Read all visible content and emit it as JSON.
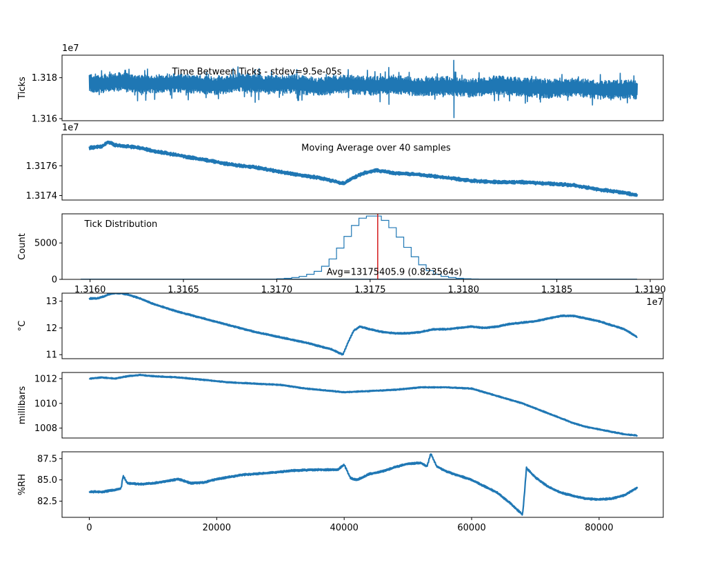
{
  "chart_data": [
    {
      "id": "ticks",
      "type": "line",
      "xlim": [
        -4270,
        90070
      ],
      "ylim": [
        13159000,
        13191000
      ],
      "ylabel": "Ticks",
      "offset_text": "1e7",
      "yticks": [
        {
          "v": 13160000,
          "label": "1.316"
        },
        {
          "v": 13180000,
          "label": "1.318"
        }
      ],
      "xticks": [],
      "annotations": [
        {
          "text": "Time Between Ticks - stdev=9.5e-05s",
          "x": 13000,
          "y": 13183000,
          "anchor": "start"
        }
      ],
      "color": "#1f77b4",
      "x": [
        0,
        2000,
        5000,
        8000,
        12000,
        16000,
        20000,
        24000,
        28000,
        32000,
        36000,
        40000,
        44000,
        48000,
        52000,
        56000,
        60000,
        64000,
        68000,
        72000,
        76000,
        80000,
        84000,
        86000
      ],
      "y": [
        13177500,
        13177000,
        13178000,
        13176500,
        13177500,
        13177000,
        13176000,
        13178000,
        13176500,
        13177000,
        13175500,
        13177000,
        13176000,
        13176500,
        13175500,
        13176000,
        13175000,
        13176500,
        13175500,
        13174500,
        13175500,
        13174000,
        13174500,
        13174000
      ],
      "envelope": {
        "low": 13171500,
        "high": 13182500,
        "spikes": [
          {
            "x": 47000,
            "low": 13167000,
            "high": 13185000
          },
          {
            "x": 57200,
            "low": 13160500,
            "high": 13188500
          },
          {
            "x": 26000,
            "low": 13168000,
            "high": 13184000
          }
        ]
      }
    },
    {
      "id": "moving-average",
      "type": "line",
      "xlim": [
        -4270,
        90070
      ],
      "ylim": [
        13173700,
        13178100
      ],
      "ylabel": "",
      "offset_text": "1e7",
      "yticks": [
        {
          "v": 13174000,
          "label": "1.3174"
        },
        {
          "v": 13176000,
          "label": "1.3176"
        }
      ],
      "xticks": [],
      "annotations": [
        {
          "text": "Moving Average over 40 samples",
          "x": 45000,
          "y": 13177200,
          "anchor": "middle"
        }
      ],
      "color": "#1f77b4",
      "x": [
        0,
        2000,
        3000,
        4000,
        6000,
        8000,
        10000,
        14000,
        18000,
        22000,
        26000,
        30000,
        34000,
        36000,
        38000,
        40000,
        41000,
        43000,
        45000,
        48000,
        52000,
        56000,
        60000,
        64000,
        68000,
        72000,
        76000,
        80000,
        84000,
        86000
      ],
      "y": [
        13177200,
        13177300,
        13177600,
        13177400,
        13177300,
        13177200,
        13177000,
        13176700,
        13176400,
        13176100,
        13175900,
        13175600,
        13175300,
        13175200,
        13175000,
        13174800,
        13175100,
        13175500,
        13175700,
        13175500,
        13175400,
        13175200,
        13175000,
        13174900,
        13174900,
        13174800,
        13174700,
        13174400,
        13174200,
        13174000
      ],
      "band": 120
    },
    {
      "id": "tick-distribution",
      "type": "histogram",
      "xlim": [
        13158500,
        13190700
      ],
      "ylim": [
        0,
        9000
      ],
      "ylabel": "Count",
      "offset_text": "1e7",
      "yticks": [
        {
          "v": 0,
          "label": "0"
        },
        {
          "v": 5000,
          "label": "5000"
        }
      ],
      "xticks": [
        {
          "v": 13160000,
          "label": "1.3160"
        },
        {
          "v": 13165000,
          "label": "1.3165"
        },
        {
          "v": 13170000,
          "label": "1.3170"
        },
        {
          "v": 13175000,
          "label": "1.3175"
        },
        {
          "v": 13180000,
          "label": "1.3180"
        },
        {
          "v": 13185000,
          "label": "1.3185"
        },
        {
          "v": 13190000,
          "label": "1.3190"
        }
      ],
      "annotations": [
        {
          "text": "Tick Distribution",
          "x": 13159700,
          "y": 7600,
          "anchor": "start"
        },
        {
          "text": "Avg=13175405.9 (0.823564s)",
          "x": 13176300,
          "y": 1000,
          "anchor": "middle"
        }
      ],
      "color": "#1f77b4",
      "mean": 13175405.9,
      "mean_color": "#d62728",
      "bin_edges": [
        13168800,
        13169200,
        13169600,
        13170000,
        13170400,
        13170800,
        13171200,
        13171600,
        13172000,
        13172400,
        13172800,
        13173200,
        13173600,
        13174000,
        13174400,
        13174800,
        13175200,
        13175600,
        13176000,
        13176400,
        13176800,
        13177200,
        13177600,
        13178000,
        13178400,
        13178800,
        13179200,
        13179600,
        13180000,
        13180400,
        13180800,
        13181200,
        13181600
      ],
      "counts": [
        10,
        20,
        40,
        80,
        150,
        250,
        400,
        700,
        1100,
        1800,
        2800,
        4300,
        5900,
        7400,
        8400,
        8700,
        8700,
        8100,
        7100,
        5800,
        4400,
        3100,
        2000,
        1200,
        700,
        400,
        250,
        150,
        90,
        50,
        20,
        10
      ]
    },
    {
      "id": "temperature",
      "type": "line",
      "xlim": [
        -4270,
        90070
      ],
      "ylim": [
        10.85,
        13.3
      ],
      "ylabel": "°C",
      "offset_text": "",
      "yticks": [
        {
          "v": 11,
          "label": "11"
        },
        {
          "v": 12,
          "label": "12"
        },
        {
          "v": 13,
          "label": "13"
        }
      ],
      "xticks": [],
      "annotations": [],
      "color": "#1f77b4",
      "x": [
        0,
        1200,
        2000,
        3000,
        4000,
        5000,
        6000,
        8000,
        10000,
        14000,
        18000,
        22000,
        26000,
        30000,
        34000,
        38000,
        39800,
        40500,
        41500,
        42500,
        44000,
        46000,
        48000,
        50000,
        52000,
        54000,
        56000,
        58000,
        60000,
        62000,
        64000,
        66000,
        68000,
        70000,
        72000,
        74000,
        76000,
        78000,
        80000,
        82000,
        84000,
        86000
      ],
      "y": [
        13.1,
        13.1,
        13.15,
        13.25,
        13.3,
        13.3,
        13.25,
        13.1,
        12.9,
        12.6,
        12.35,
        12.1,
        11.85,
        11.65,
        11.45,
        11.2,
        11.0,
        11.4,
        11.9,
        12.05,
        11.95,
        11.85,
        11.8,
        11.8,
        11.85,
        11.95,
        11.95,
        12.0,
        12.05,
        12.0,
        12.05,
        12.15,
        12.2,
        12.25,
        12.35,
        12.45,
        12.45,
        12.35,
        12.25,
        12.1,
        11.95,
        11.65
      ],
      "band": 0.03
    },
    {
      "id": "pressure",
      "type": "line",
      "xlim": [
        -4270,
        90070
      ],
      "ylim": [
        1007.2,
        1012.5
      ],
      "ylabel": "millibars",
      "offset_text": "",
      "yticks": [
        {
          "v": 1008,
          "label": "1008"
        },
        {
          "v": 1010,
          "label": "1010"
        },
        {
          "v": 1012,
          "label": "1012"
        }
      ],
      "xticks": [],
      "annotations": [],
      "color": "#1f77b4",
      "x": [
        0,
        2000,
        4000,
        6000,
        8000,
        10000,
        14000,
        18000,
        22000,
        26000,
        30000,
        34000,
        38000,
        40000,
        44000,
        48000,
        52000,
        56000,
        60000,
        62000,
        64000,
        66000,
        68000,
        70000,
        72000,
        74000,
        76000,
        78000,
        80000,
        82000,
        84000,
        86000
      ],
      "y": [
        1012.0,
        1012.1,
        1012.0,
        1012.2,
        1012.3,
        1012.2,
        1012.1,
        1011.9,
        1011.7,
        1011.6,
        1011.5,
        1011.2,
        1011.0,
        1010.9,
        1011.0,
        1011.1,
        1011.3,
        1011.3,
        1011.2,
        1010.9,
        1010.6,
        1010.3,
        1010.0,
        1009.6,
        1009.2,
        1008.8,
        1008.4,
        1008.1,
        1007.9,
        1007.7,
        1007.5,
        1007.4
      ],
      "band": 0.05
    },
    {
      "id": "humidity",
      "type": "line",
      "xlim": [
        -4270,
        90070
      ],
      "ylim": [
        80.6,
        88.3
      ],
      "ylabel": "%RH",
      "offset_text": "",
      "yticks": [
        {
          "v": 82.5,
          "label": "82.5"
        },
        {
          "v": 85.0,
          "label": "85.0"
        },
        {
          "v": 87.5,
          "label": "87.5"
        }
      ],
      "xticks": [
        {
          "v": 0,
          "label": "0"
        },
        {
          "v": 20000,
          "label": "20000"
        },
        {
          "v": 40000,
          "label": "40000"
        },
        {
          "v": 60000,
          "label": "60000"
        },
        {
          "v": 80000,
          "label": "80000"
        }
      ],
      "annotations": [],
      "color": "#1f77b4",
      "x": [
        0,
        2000,
        4000,
        5000,
        5300,
        6000,
        8000,
        10000,
        14000,
        16000,
        18000,
        20000,
        24000,
        28000,
        32000,
        36000,
        39000,
        40000,
        41000,
        42000,
        44000,
        46000,
        48000,
        50000,
        52000,
        53000,
        53600,
        54500,
        56000,
        60000,
        64000,
        66000,
        68000,
        68300,
        68600,
        70000,
        72000,
        74000,
        76000,
        78000,
        80000,
        82000,
        84000,
        86000
      ],
      "y": [
        83.6,
        83.6,
        83.8,
        84.0,
        85.5,
        84.6,
        84.5,
        84.6,
        85.1,
        84.6,
        84.7,
        85.1,
        85.6,
        85.8,
        86.1,
        86.2,
        86.2,
        86.8,
        85.2,
        85.0,
        85.7,
        86.0,
        86.5,
        86.9,
        87.0,
        86.6,
        88.1,
        86.6,
        86.0,
        85.0,
        83.5,
        82.3,
        80.9,
        83.5,
        86.4,
        85.3,
        84.2,
        83.5,
        83.1,
        82.8,
        82.7,
        82.8,
        83.2,
        84.1
      ],
      "band": 0.12
    }
  ]
}
